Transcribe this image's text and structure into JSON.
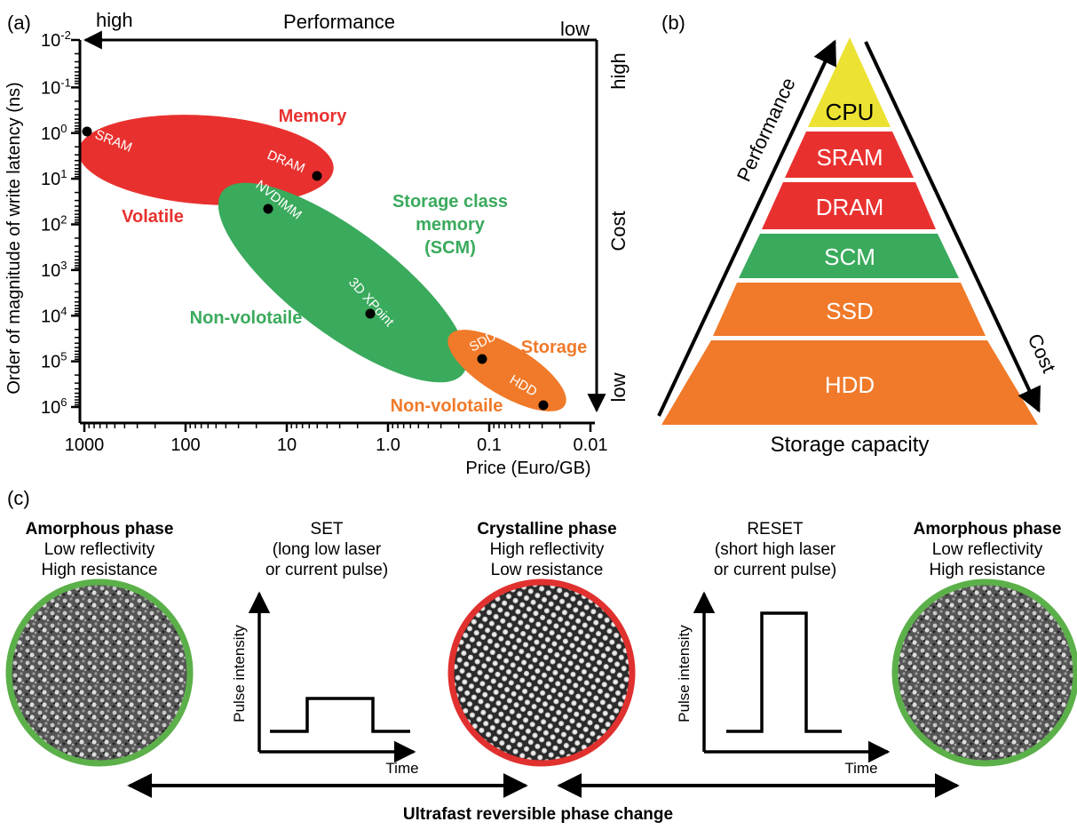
{
  "panel_a": {
    "label": "(a)",
    "top_axis": {
      "left": "high",
      "title": "Performance",
      "right": "low"
    },
    "right_axis": {
      "top": "high",
      "title": "Cost",
      "bottom": "low"
    },
    "y_label": "Order of magnitude of write latency (ns)",
    "x_label": "Price (Euro/GB)",
    "x_ticks": [
      "1000",
      "100",
      "10",
      "1.0",
      "0.1",
      "0.01"
    ],
    "y_ticks": [
      {
        "base": "10",
        "exp": "-2"
      },
      {
        "base": "10",
        "exp": "-1"
      },
      {
        "base": "10",
        "exp": "0"
      },
      {
        "base": "10",
        "exp": "1"
      },
      {
        "base": "10",
        "exp": "2"
      },
      {
        "base": "10",
        "exp": "3"
      },
      {
        "base": "10",
        "exp": "4"
      },
      {
        "base": "10",
        "exp": "5"
      },
      {
        "base": "10",
        "exp": "6"
      }
    ],
    "regions": {
      "memory": "Memory",
      "volatile": "Volatile",
      "scm_line1": "Storage class",
      "scm_line2": "memory",
      "scm_line3": "(SCM)",
      "nonvol_scm": "Non-volotaile",
      "storage": "Storage",
      "nonvol_storage": "Non-volotaile"
    },
    "points": {
      "sram": "SRAM",
      "dram": "DRAM",
      "nvdimm": "NVDIMM",
      "xpoint": "3D XPoint",
      "sdd": "SDD",
      "hdd": "HDD"
    },
    "colors": {
      "memory": "#e8312f",
      "scm": "#3aaa5c",
      "storage": "#f07a2a"
    }
  },
  "panel_b": {
    "label": "(b)",
    "levels": [
      "CPU",
      "SRAM",
      "DRAM",
      "SCM",
      "SSD",
      "HDD"
    ],
    "performance": "Performance",
    "cost": "Cost",
    "capacity": "Storage capacity",
    "colors": {
      "cpu": "#ece233",
      "memory": "#e8312f",
      "scm": "#3aaa5c",
      "storage": "#f07a2a"
    }
  },
  "panel_c": {
    "label": "(c)",
    "amorph1": {
      "title": "Amorphous phase",
      "line1": "Low reflectivity",
      "line2": "High resistance"
    },
    "set": {
      "title": "SET",
      "line1": "(long low laser",
      "line2": "or current pulse)"
    },
    "crystal": {
      "title": "Crystalline phase",
      "line1": "High reflectivity",
      "line2": "Low resistance"
    },
    "reset": {
      "title": "RESET",
      "line1": "(short high laser",
      "line2": "or current pulse)"
    },
    "amorph2": {
      "title": "Amorphous phase",
      "line1": "Low reflectivity",
      "line2": "High resistance"
    },
    "pulse_axis_y": "Pulse intensity",
    "pulse_axis_x": "Time",
    "bottom_caption": "Ultrafast reversible phase change",
    "colors": {
      "amorphous_ring": "#5cb04a",
      "crystal_ring": "#e0312f"
    }
  }
}
